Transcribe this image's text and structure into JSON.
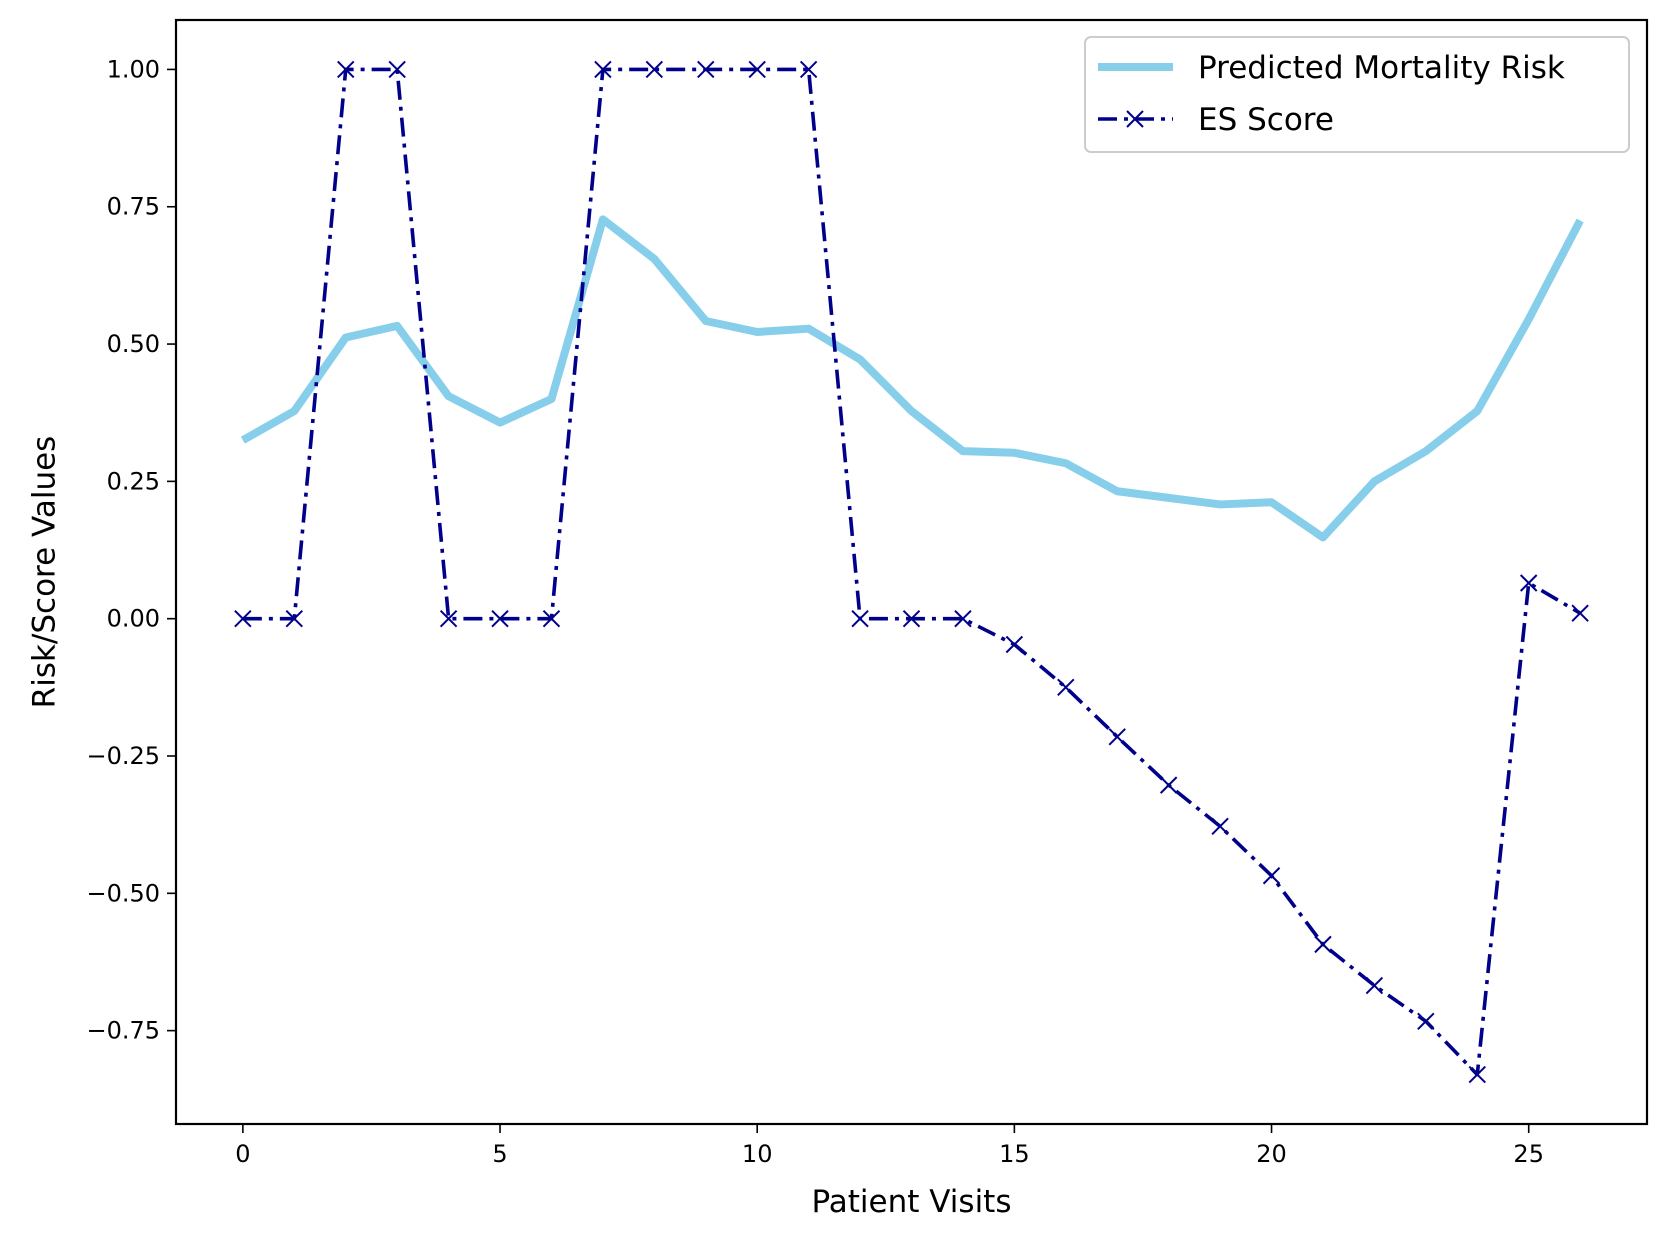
{
  "chart_data": {
    "type": "line",
    "title": "",
    "xlabel": "Patient Visits",
    "ylabel": "Risk/Score Values",
    "xlim": [
      -1.3,
      27.3
    ],
    "ylim": [
      -0.92,
      1.09
    ],
    "xticks": [
      0,
      5,
      10,
      15,
      20,
      25
    ],
    "yticks": [
      -0.75,
      -0.5,
      -0.25,
      0.0,
      0.25,
      0.5,
      0.75,
      1.0
    ],
    "xtick_labels": [
      "0",
      "5",
      "10",
      "15",
      "20",
      "25"
    ],
    "ytick_labels": [
      "−0.75",
      "−0.50",
      "−0.25",
      "0.00",
      "0.25",
      "0.50",
      "0.75",
      "1.00"
    ],
    "grid": false,
    "legend_position": "top-right",
    "x": [
      0,
      1,
      2,
      3,
      4,
      5,
      6,
      7,
      8,
      9,
      10,
      11,
      12,
      13,
      14,
      15,
      16,
      17,
      18,
      19,
      20,
      21,
      22,
      23,
      24,
      25,
      26
    ],
    "series": [
      {
        "name": "Predicted Mortality Risk",
        "color": "#87ceeb",
        "style": "solid",
        "marker": "none",
        "values": [
          0.325,
          0.378,
          0.512,
          0.533,
          0.405,
          0.357,
          0.4,
          0.727,
          0.655,
          0.542,
          0.522,
          0.528,
          0.472,
          0.378,
          0.305,
          0.302,
          0.283,
          0.232,
          0.22,
          0.208,
          0.212,
          0.148,
          0.25,
          0.305,
          0.378,
          0.545,
          0.725
        ]
      },
      {
        "name": "ES Score",
        "color": "#00008b",
        "style": "dashdot",
        "marker": "x",
        "values": [
          0,
          0,
          1,
          1,
          0,
          0,
          0,
          1,
          1,
          1,
          1,
          1,
          0,
          0,
          0,
          -0.047,
          -0.125,
          -0.215,
          -0.303,
          -0.378,
          -0.468,
          -0.593,
          -0.668,
          -0.733,
          -0.83,
          0.065,
          0.01
        ]
      }
    ]
  }
}
